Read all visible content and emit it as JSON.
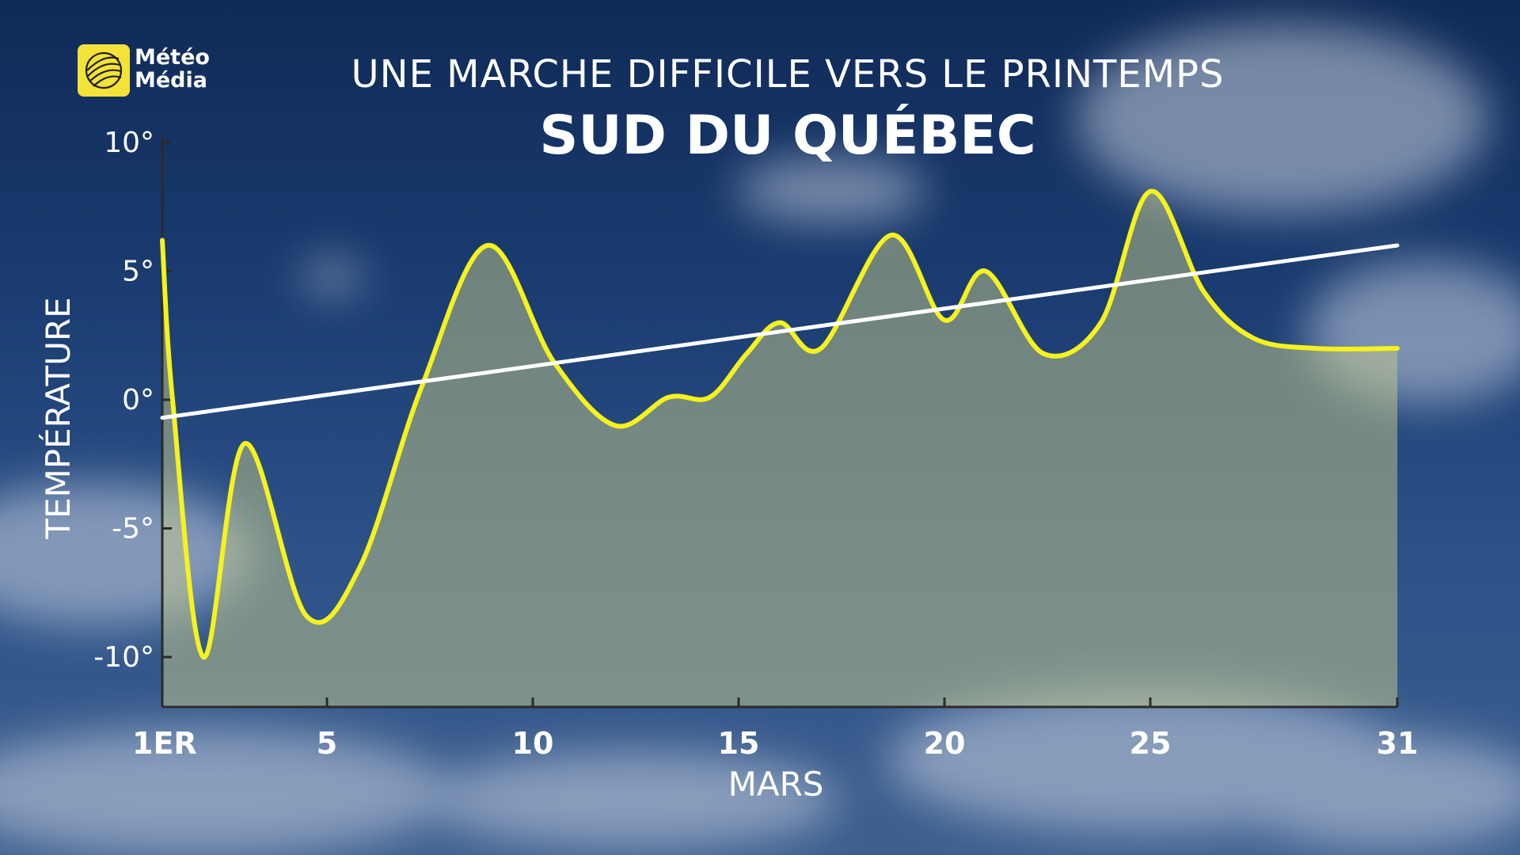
{
  "brand": {
    "line1": "Météo",
    "line2": "Média",
    "badge_color": "#f3e23a"
  },
  "title": "UNE MARCHE DIFFICILE VERS LE PRINTEMPS",
  "subtitle": "SUD DU QUÉBEC",
  "chart_data": {
    "type": "line",
    "xlabel": "MARS",
    "ylabel": "TEMPÉRATURE",
    "xlim": [
      1,
      31
    ],
    "ylim": [
      -12,
      10
    ],
    "x_ticks": [
      {
        "value": 1,
        "label": "1ER"
      },
      {
        "value": 5,
        "label": "5"
      },
      {
        "value": 10,
        "label": "10"
      },
      {
        "value": 15,
        "label": "15"
      },
      {
        "value": 20,
        "label": "20"
      },
      {
        "value": 25,
        "label": "25"
      },
      {
        "value": 31,
        "label": "31"
      }
    ],
    "y_ticks": [
      {
        "value": 10,
        "label": "10°"
      },
      {
        "value": 5,
        "label": "5°"
      },
      {
        "value": 0,
        "label": "0°"
      },
      {
        "value": -5,
        "label": "-5°"
      },
      {
        "value": -10,
        "label": "-10°"
      }
    ],
    "series": [
      {
        "color": "#f5f21e",
        "fill": true,
        "x": [
          1,
          1.25,
          2,
          3,
          4.5,
          5.8,
          7.3,
          8.9,
          10.5,
          12,
          13.3,
          14.3,
          15.2,
          16,
          17,
          18.7,
          20,
          21,
          22.4,
          23.8,
          25,
          26.3,
          27.5,
          29,
          31
        ],
        "values": [
          6.2,
          0,
          -10,
          -1.7,
          -8.4,
          -6.5,
          0.5,
          6.0,
          1.5,
          -1.0,
          0.1,
          0.1,
          1.8,
          3.0,
          2.0,
          6.4,
          3.1,
          5.0,
          1.8,
          3.0,
          8.1,
          4.2,
          2.4,
          2.0,
          2.0
        ]
      },
      {
        "color": "#ffffff",
        "fill": false,
        "x": [
          1,
          31
        ],
        "values": [
          -0.7,
          6.0
        ]
      }
    ],
    "grid": false
  }
}
